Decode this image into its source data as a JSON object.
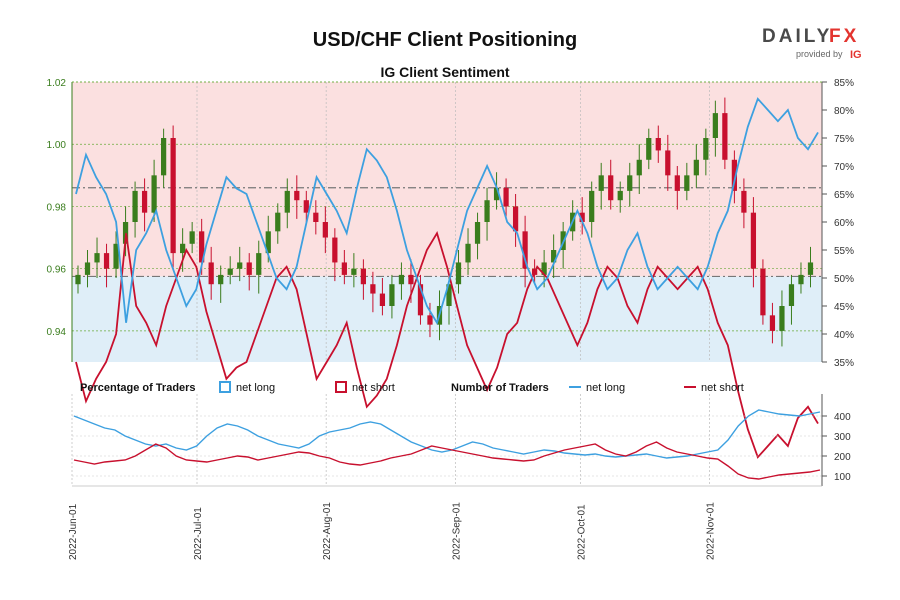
{
  "header": {
    "title": "USD/CHF Client Positioning",
    "subtitle": "IG Client Sentiment"
  },
  "logo": {
    "brand_left": "DAILY",
    "brand_right": "FX",
    "provided_by": "provided by",
    "ig": "IG"
  },
  "colors": {
    "net_long": "#3da0e0",
    "net_short": "#c8102e",
    "candle_up": "#3a7d1d",
    "candle_down": "#c8102e",
    "upper_fill": "#fbe0e0",
    "lower_fill": "#dfeef8",
    "grid_price": "#6aaa3a"
  },
  "legend": {
    "pct_header": "Percentage of Traders",
    "pct_long": "net long",
    "pct_short": "net short",
    "num_header": "Number of Traders",
    "num_long": "net long",
    "num_short": "net short"
  },
  "chart_data": [
    {
      "type": "candlestick",
      "title": "USD/CHF Client Positioning",
      "subtitle": "IG Client Sentiment",
      "y_left": {
        "ylim": [
          0.93,
          1.02
        ],
        "ticks": [
          "0.94",
          "0.96",
          "0.98",
          "1.00",
          "1.02"
        ]
      },
      "y_right": {
        "ylim": [
          35,
          85
        ],
        "ticks": [
          "35%",
          "40%",
          "45%",
          "50%",
          "55%",
          "60%",
          "65%",
          "70%",
          "75%",
          "80%",
          "85%"
        ]
      },
      "reference_lines": [
        0.9575,
        0.986
      ],
      "x_ticks": [
        "2022-Jun-01",
        "2022-Jul-01",
        "2022-Aug-01",
        "2022-Sep-01",
        "2022-Oct-01",
        "2022-Nov-01"
      ],
      "x_range": [
        "2022-06-01",
        "2022-11-28"
      ],
      "price_close": [
        0.958,
        0.962,
        0.965,
        0.96,
        0.968,
        0.975,
        0.985,
        0.978,
        0.99,
        1.002,
        0.965,
        0.968,
        0.972,
        0.962,
        0.955,
        0.958,
        0.96,
        0.962,
        0.958,
        0.965,
        0.972,
        0.978,
        0.985,
        0.982,
        0.978,
        0.975,
        0.97,
        0.962,
        0.958,
        0.96,
        0.955,
        0.952,
        0.948,
        0.955,
        0.958,
        0.955,
        0.945,
        0.942,
        0.948,
        0.955,
        0.962,
        0.968,
        0.975,
        0.982,
        0.986,
        0.98,
        0.972,
        0.96,
        0.958,
        0.962,
        0.966,
        0.972,
        0.978,
        0.975,
        0.985,
        0.99,
        0.982,
        0.985,
        0.99,
        0.995,
        1.002,
        0.998,
        0.99,
        0.985,
        0.99,
        0.995,
        1.002,
        1.01,
        0.995,
        0.985,
        0.978,
        0.96,
        0.945,
        0.94,
        0.948,
        0.955,
        0.958,
        0.962
      ],
      "sentiment_pct_long": [
        65,
        72,
        68,
        65,
        60,
        42,
        55,
        58,
        62,
        55,
        50,
        45,
        48,
        56,
        62,
        68,
        66,
        65,
        60,
        55,
        50,
        48,
        52,
        60,
        68,
        65,
        62,
        58,
        66,
        73,
        71,
        68,
        62,
        55,
        50,
        45,
        42,
        48,
        55,
        62,
        66,
        70,
        66,
        60,
        58,
        52,
        48,
        50,
        54,
        58,
        62,
        58,
        52,
        48,
        50,
        55,
        58,
        52,
        48,
        50,
        52,
        50,
        48,
        52,
        58,
        62,
        70,
        77,
        82,
        80,
        78,
        80,
        75,
        73,
        76
      ]
    },
    {
      "type": "line",
      "title": "Number of Traders",
      "y_ticks": [
        "100",
        "200",
        "300",
        "400"
      ],
      "ylim": [
        50,
        460
      ],
      "series": [
        {
          "name": "net long",
          "values": [
            400,
            380,
            360,
            340,
            330,
            300,
            280,
            260,
            250,
            260,
            240,
            230,
            250,
            300,
            340,
            360,
            350,
            330,
            300,
            280,
            260,
            250,
            240,
            260,
            300,
            320,
            330,
            340,
            360,
            370,
            360,
            330,
            300,
            270,
            250,
            230,
            220,
            230,
            250,
            270,
            260,
            240,
            230,
            220,
            210,
            220,
            230,
            225,
            215,
            210,
            205,
            210,
            200,
            195,
            200,
            205,
            210,
            200,
            190,
            195,
            200,
            210,
            220,
            230,
            280,
            350,
            400,
            430,
            420,
            410,
            405,
            400,
            410,
            420
          ]
        },
        {
          "name": "net short",
          "values": [
            180,
            170,
            160,
            170,
            175,
            180,
            200,
            230,
            260,
            240,
            200,
            180,
            175,
            170,
            180,
            190,
            200,
            195,
            180,
            190,
            200,
            210,
            220,
            215,
            200,
            190,
            170,
            160,
            155,
            165,
            175,
            190,
            200,
            210,
            230,
            250,
            240,
            230,
            220,
            210,
            200,
            190,
            185,
            180,
            175,
            180,
            200,
            215,
            230,
            240,
            250,
            260,
            230,
            210,
            200,
            220,
            250,
            270,
            240,
            220,
            210,
            200,
            190,
            185,
            150,
            110,
            90,
            85,
            95,
            105,
            110,
            115,
            120,
            130
          ]
        }
      ]
    }
  ]
}
